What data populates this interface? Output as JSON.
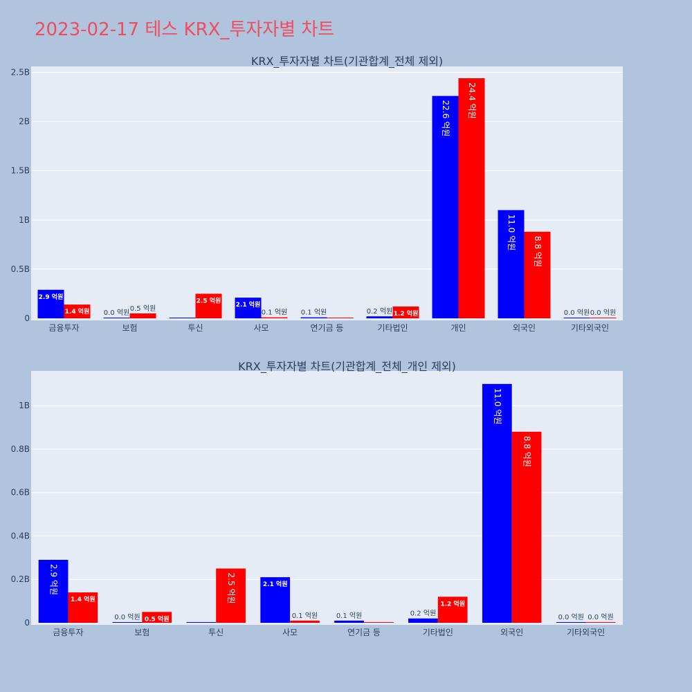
{
  "page": {
    "title": "2023-02-17 테스 KRX_투자자별 차트"
  },
  "colors": {
    "buy": "#0000ff",
    "sell": "#ff0000",
    "plot_bg": "#e5ecf6",
    "page_bg": "#b0c4de",
    "title": "#ef4d5e"
  },
  "chart_data": [
    {
      "type": "bar",
      "title": "KRX_투자자별 차트(기관합계_전체 제외)",
      "categories": [
        "금융투자",
        "보험",
        "투신",
        "사모",
        "연기금 등",
        "기타법인",
        "개인",
        "외국인",
        "기타외국인"
      ],
      "series": [
        {
          "values": [
            290000000,
            0,
            0,
            210000000,
            10000000,
            20000000,
            2260000000,
            1100000000,
            0
          ],
          "labels": [
            "2.9 억원",
            "0.0 억원",
            "",
            "2.1 억원",
            "0.1 억원",
            "0.2 억원",
            "22.6 억원",
            "11.0 억원",
            "0.0 억원"
          ]
        },
        {
          "values": [
            140000000,
            50000000,
            250000000,
            10000000,
            0,
            120000000,
            2440000000,
            880000000,
            0
          ],
          "labels": [
            "1.4 억원",
            "0.5 억원",
            "2.5 억원",
            "0.1 억원",
            "",
            "1.2 억원",
            "24.4 억원",
            "8.8 억원",
            "0.0 억원"
          ]
        }
      ],
      "yticks": [
        0,
        500000000,
        1000000000,
        1500000000,
        2000000000,
        2500000000
      ],
      "ytick_labels": [
        "0",
        "0.5B",
        "1B",
        "1.5B",
        "2B",
        "2.5B"
      ],
      "ylim": [
        0,
        2560000000
      ],
      "grid": true
    },
    {
      "type": "bar",
      "title": "KRX_투자자별 차트(기관합계_전체_개인 제외)",
      "categories": [
        "금융투자",
        "보험",
        "투신",
        "사모",
        "연기금 등",
        "기타법인",
        "외국인",
        "기타외국인"
      ],
      "series": [
        {
          "values": [
            290000000,
            0,
            0,
            210000000,
            10000000,
            20000000,
            1100000000,
            0
          ],
          "labels": [
            "2.9 억원",
            "0.0 억원",
            "",
            "2.1 억원",
            "0.1 억원",
            "0.2 억원",
            "11.0 억원",
            "0.0 억원"
          ]
        },
        {
          "values": [
            140000000,
            50000000,
            250000000,
            10000000,
            0,
            120000000,
            880000000,
            0
          ],
          "labels": [
            "1.4 억원",
            "0.5 억원",
            "2.5 억원",
            "0.1 억원",
            "",
            "1.2 억원",
            "8.8 억원",
            "0.0 억원"
          ]
        }
      ],
      "yticks": [
        0,
        200000000,
        400000000,
        600000000,
        800000000,
        1000000000
      ],
      "ytick_labels": [
        "0",
        "0.2B",
        "0.4B",
        "0.6B",
        "0.8B",
        "1B"
      ],
      "ylim": [
        0,
        1160000000
      ],
      "grid": true
    }
  ]
}
